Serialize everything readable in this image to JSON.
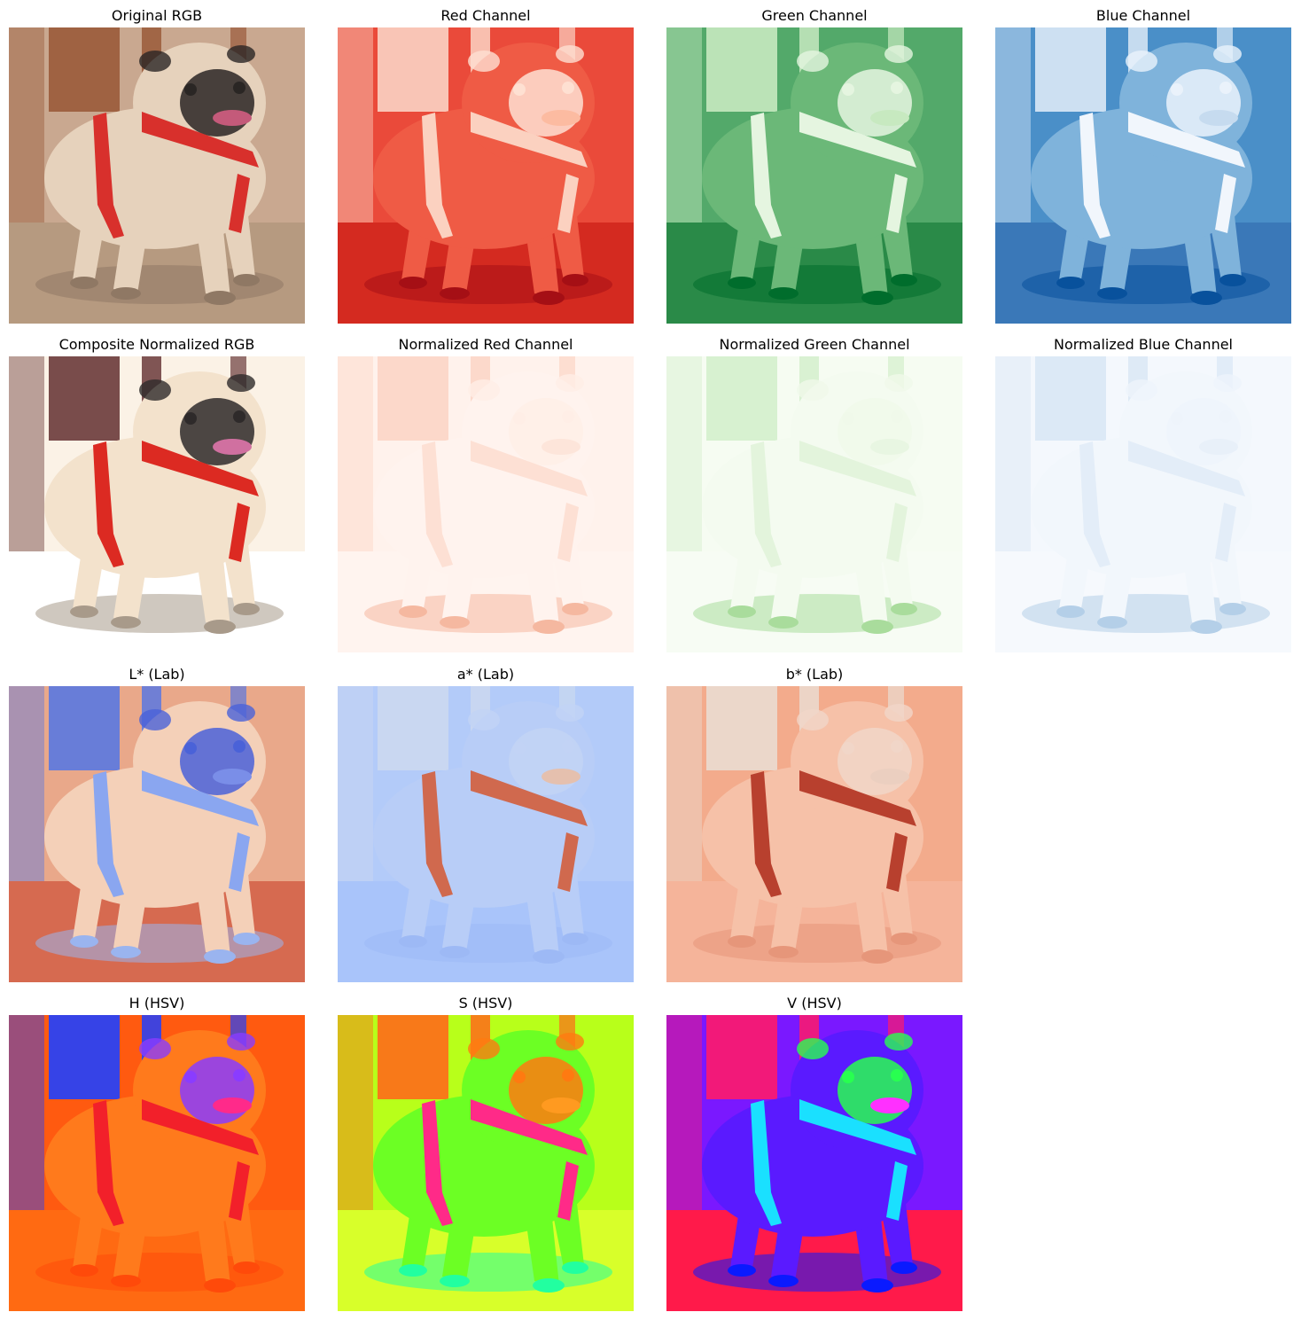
{
  "figure": {
    "panels": [
      {
        "title": "Original RGB",
        "scheme": "rgb",
        "colors": {
          "bg": "#c9a890",
          "wall": "#9a5a3a",
          "floor": "#b69a80",
          "body": "#e6d2bc",
          "shadow": "#8f7864",
          "face": "#2a2624",
          "harness": "#d8302c",
          "tongue": "#c45a7a"
        }
      },
      {
        "title": "Red Channel",
        "scheme": "red",
        "colors": {
          "bg": "#ea4a3a",
          "wall": "#fbd3c4",
          "floor": "#d42a20",
          "body": "#ef5b45",
          "shadow": "#a50f15",
          "face": "#fee0d2",
          "harness": "#fbd1c0",
          "tongue": "#fcbba1"
        }
      },
      {
        "title": "Green Channel",
        "scheme": "green",
        "colors": {
          "bg": "#53a96a",
          "wall": "#c7e9c0",
          "floor": "#2a8a48",
          "body": "#6bb878",
          "shadow": "#006d2c",
          "face": "#e5f5e0",
          "harness": "#e5f5e0",
          "tongue": "#c7e9c0"
        }
      },
      {
        "title": "Blue Channel",
        "scheme": "blue",
        "colors": {
          "bg": "#4a8fc8",
          "wall": "#dbe9f6",
          "floor": "#3a78b8",
          "body": "#7fb3db",
          "shadow": "#08519c",
          "face": "#eaf2fb",
          "harness": "#f1f6fc",
          "tongue": "#c6dbef"
        }
      },
      {
        "title": "Composite Normalized RGB",
        "scheme": "normrgb",
        "colors": {
          "bg": "#fbf2e6",
          "wall": "#6a3a3a",
          "floor": "#ffffff",
          "body": "#f3e2cc",
          "shadow": "#a89a8a",
          "face": "#2e2a2a",
          "harness": "#dc2a22",
          "tongue": "#d070a0"
        }
      },
      {
        "title": "Normalized Red Channel",
        "scheme": "normred",
        "colors": {
          "bg": "#fff2ec",
          "wall": "#fcd5c6",
          "floor": "#fff4ef",
          "body": "#fff3ee",
          "shadow": "#f5b8a0",
          "face": "#ffeee6",
          "harness": "#fde0d4",
          "tongue": "#fde5da"
        }
      },
      {
        "title": "Normalized Green Channel",
        "scheme": "normgreen",
        "colors": {
          "bg": "#f6fcf2",
          "wall": "#d4efcc",
          "floor": "#f7fcf4",
          "body": "#f4fbf0",
          "shadow": "#a9dc9c",
          "face": "#f0f9ea",
          "harness": "#e3f4dc",
          "tongue": "#e8f6e2"
        }
      },
      {
        "title": "Normalized Blue Channel",
        "scheme": "normblue",
        "colors": {
          "bg": "#f4f8fd",
          "wall": "#d9e7f5",
          "floor": "#f6f9fd",
          "body": "#f2f7fc",
          "shadow": "#b4cfe8",
          "face": "#eef4fb",
          "harness": "#e3edf8",
          "tongue": "#e8f0f9"
        }
      },
      {
        "title": "L* (Lab)",
        "scheme": "labL",
        "colors": {
          "bg": "#e9a88a",
          "wall": "#5a78e0",
          "floor": "#d66a50",
          "body": "#f4d0b8",
          "shadow": "#9ab4ef",
          "face": "#4a62d8",
          "harness": "#8aa6f0",
          "tongue": "#7a8ee8"
        }
      },
      {
        "title": "a* (Lab)",
        "scheme": "laba",
        "colors": {
          "bg": "#b3cbf9",
          "wall": "#cbd8f0",
          "floor": "#a9c4fa",
          "body": "#b8cdf7",
          "shadow": "#9db9f5",
          "face": "#c2d3f5",
          "harness": "#d0694e",
          "tongue": "#e5c0ae"
        }
      },
      {
        "title": "b* (Lab)",
        "scheme": "labb",
        "colors": {
          "bg": "#f3ab8c",
          "wall": "#eadbd0",
          "floor": "#f5b49a",
          "body": "#f6c1a8",
          "shadow": "#e6967a",
          "face": "#f1d6c8",
          "harness": "#b8402e",
          "tongue": "#ebcfc0"
        }
      },
      {
        "title": "H (HSV)",
        "scheme": "hsvH",
        "colors": {
          "bg": "#ff5a10",
          "wall": "#2040ff",
          "floor": "#ff6a12",
          "body": "#ff7a1c",
          "shadow": "#ff4a0a",
          "face": "#8a3cff",
          "harness": "#f2202a",
          "tongue": "#ff2a8a"
        }
      },
      {
        "title": "S (HSV)",
        "scheme": "hsvS",
        "colors": {
          "bg": "#b8ff1a",
          "wall": "#ff6a1a",
          "floor": "#d8ff2a",
          "body": "#6cff24",
          "shadow": "#22ffa0",
          "face": "#ff7a10",
          "harness": "#ff2a88",
          "tongue": "#ff9a20"
        }
      },
      {
        "title": "V (HSV)",
        "scheme": "hsvV",
        "colors": {
          "bg": "#7a18ff",
          "wall": "#ff1a6a",
          "floor": "#ff1a4a",
          "body": "#5a1aff",
          "shadow": "#0a1aff",
          "face": "#28ff50",
          "harness": "#1ae0ff",
          "tongue": "#ff30ff"
        }
      }
    ]
  }
}
